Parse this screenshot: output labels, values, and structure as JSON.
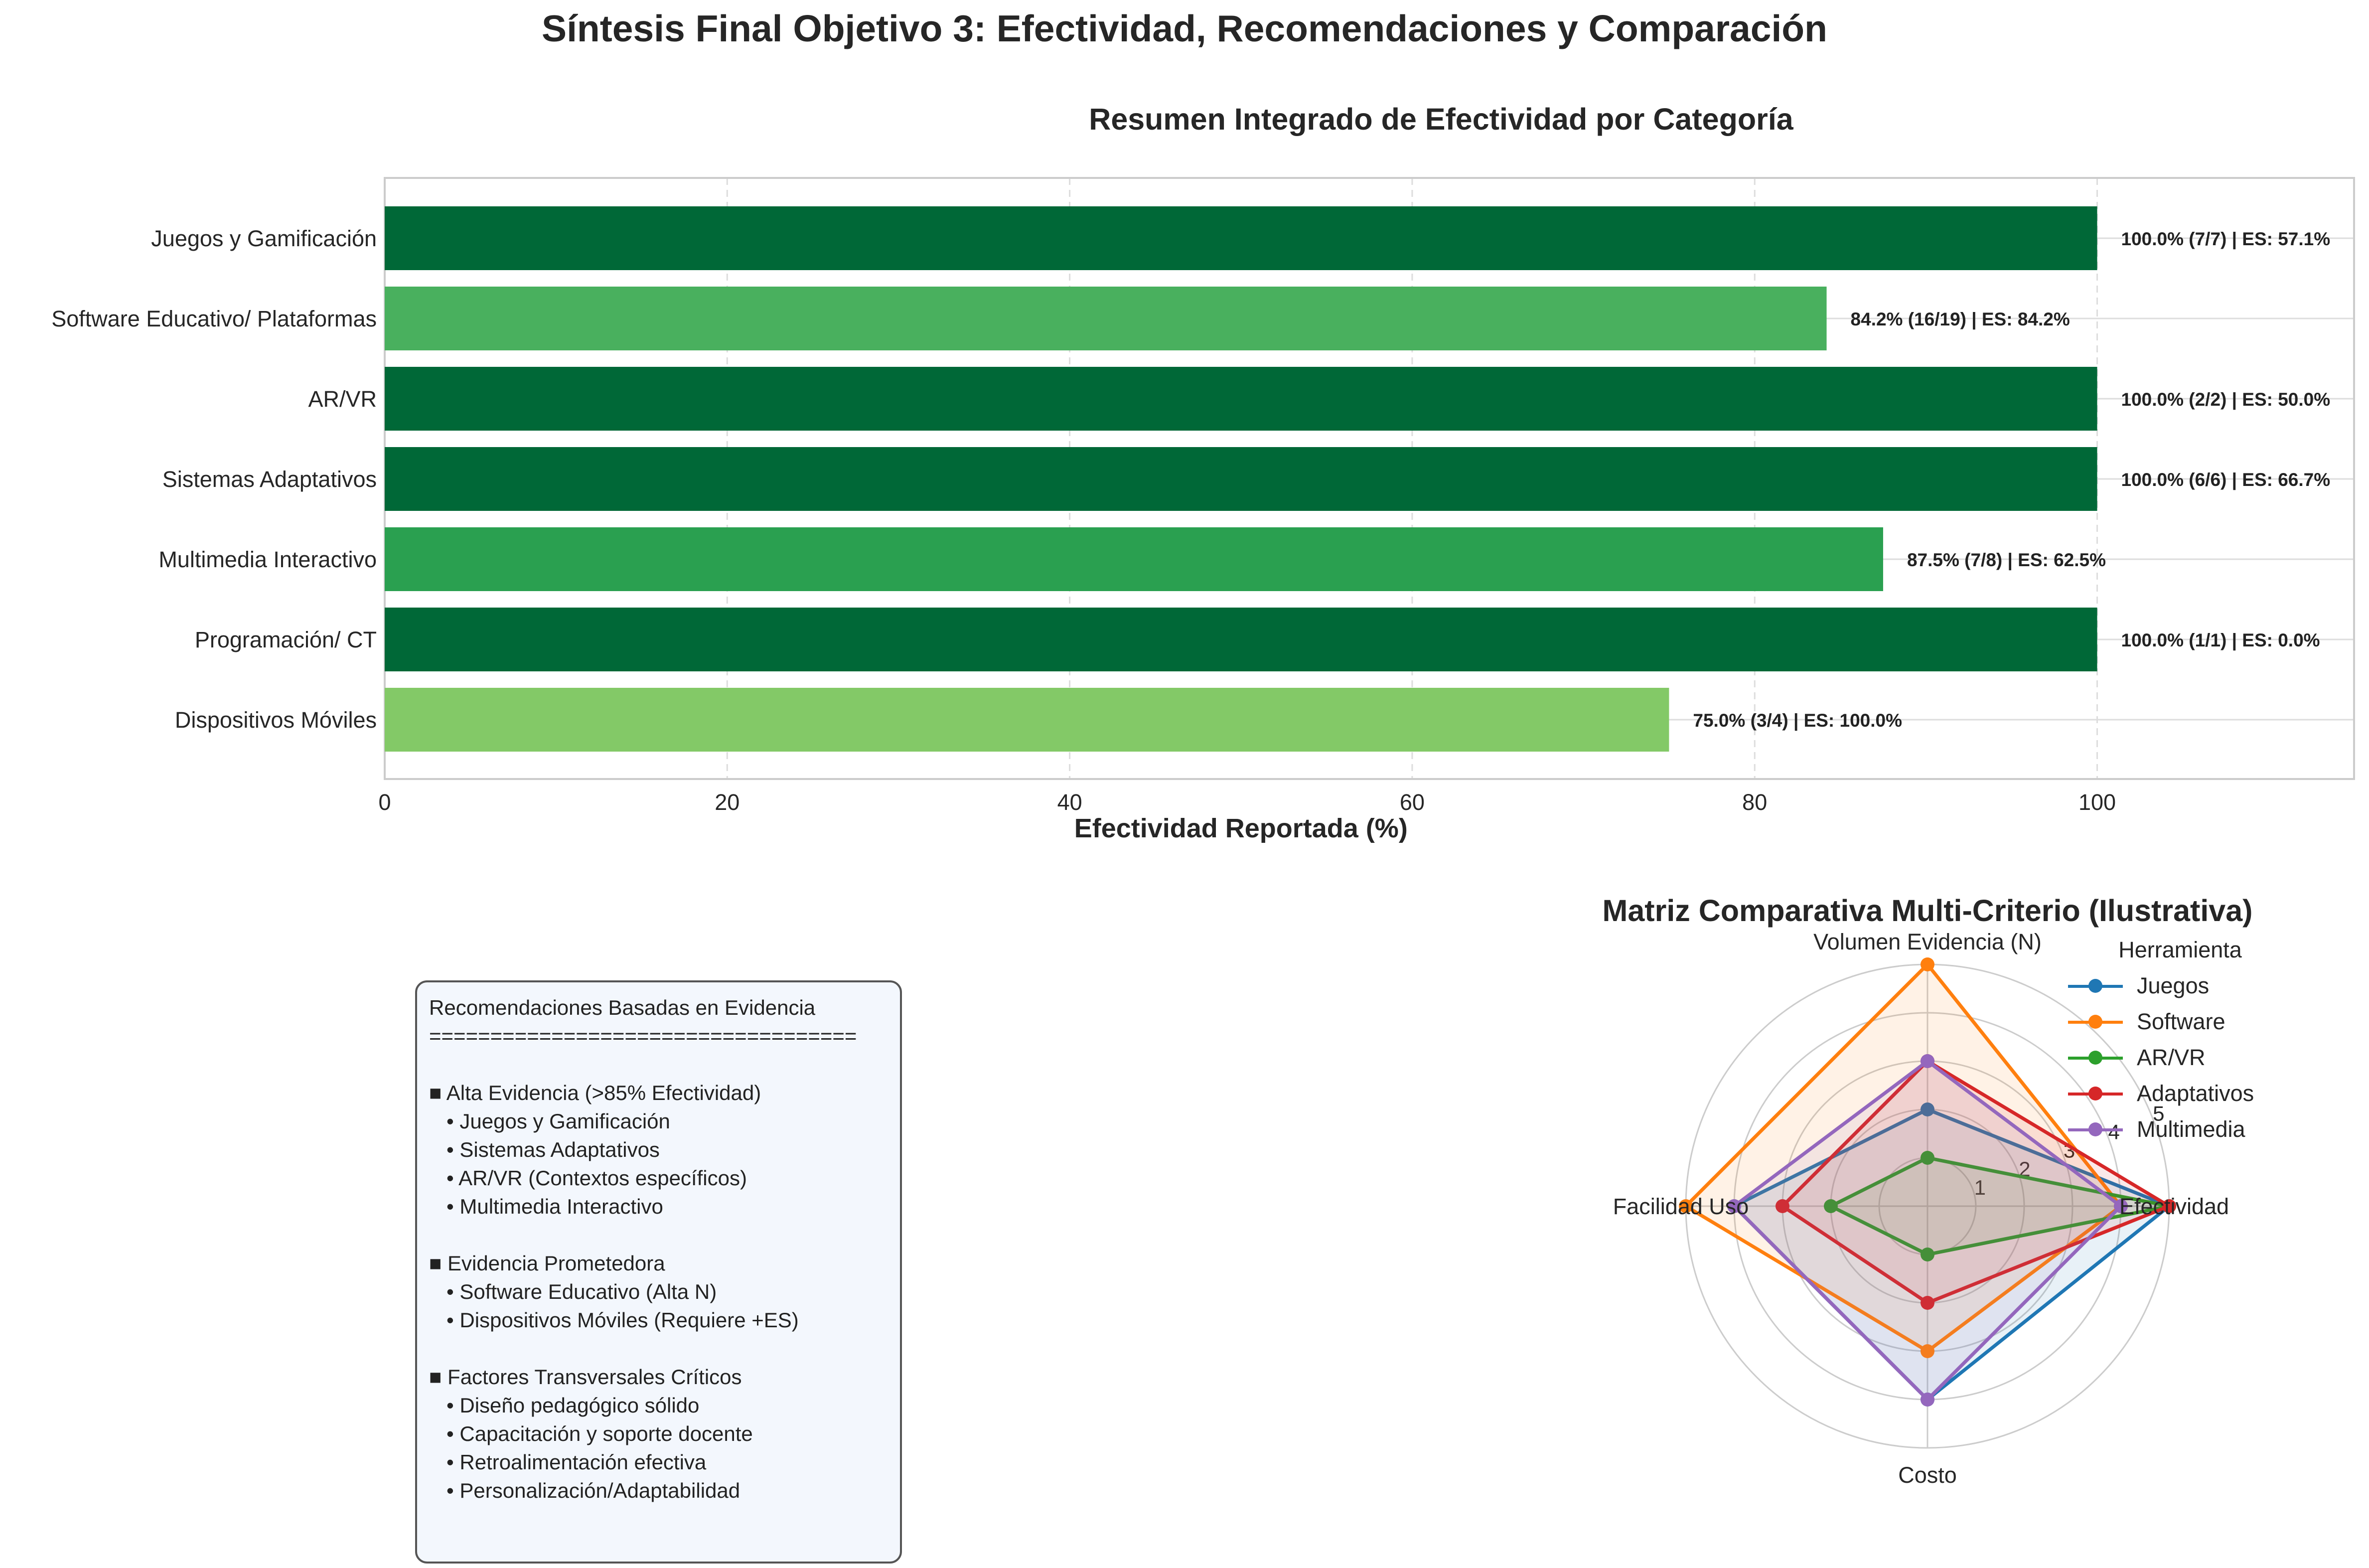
{
  "suptitle": "Síntesis Final Objetivo 3: Efectividad, Recomendaciones y Comparación",
  "chart_data": [
    {
      "type": "bar",
      "orientation": "horizontal",
      "title": "Resumen Integrado de Efectividad por Categoría",
      "xlabel": "Efectividad Reportada (%)",
      "ylabel": "",
      "xlim": [
        0,
        115
      ],
      "xticks": [
        0,
        20,
        40,
        60,
        80,
        100
      ],
      "grid": true,
      "categories": [
        "Juegos y Gamificación",
        "Software Educativo/ Plataformas",
        "AR/VR",
        "Sistemas Adaptativos",
        "Multimedia Interactivo",
        "Programación/ CT",
        "Dispositivos Móviles"
      ],
      "values": [
        100.0,
        84.2,
        100.0,
        100.0,
        87.5,
        100.0,
        75.0
      ],
      "bar_colors": [
        "#006837",
        "#49b05e",
        "#006837",
        "#006837",
        "#2aa050",
        "#006837",
        "#83c967"
      ],
      "data_labels": [
        "100.0% (7/7) | ES: 57.1%",
        "84.2% (16/19) | ES: 84.2%",
        "100.0% (2/2) | ES: 50.0%",
        "100.0% (6/6) | ES: 66.7%",
        "87.5% (7/8) | ES: 62.5%",
        "100.0% (1/1) | ES: 0.0%",
        "75.0% (3/4) | ES: 100.0%"
      ]
    },
    {
      "type": "radar",
      "title": "Matriz Comparativa Multi-Criterio (Ilustrativa)",
      "axes": [
        "Efectividad",
        "Volumen Evidencia (N)",
        "Facilidad Uso",
        "Costo"
      ],
      "rlim": [
        0,
        5
      ],
      "rticks": [
        1,
        2,
        3,
        4,
        5
      ],
      "legend_title": "Herramienta",
      "legend_position": "top-right",
      "series": [
        {
          "name": "Juegos",
          "color": "#1f77b4",
          "values": [
            5,
            2,
            4,
            4
          ]
        },
        {
          "name": "Software",
          "color": "#ff7f0e",
          "values": [
            4,
            5,
            5,
            3
          ]
        },
        {
          "name": "AR/VR",
          "color": "#2ca02c",
          "values": [
            5,
            1,
            2,
            1
          ]
        },
        {
          "name": "Adaptativos",
          "color": "#d62728",
          "values": [
            5,
            3,
            3,
            2
          ]
        },
        {
          "name": "Multimedia",
          "color": "#9467bd",
          "values": [
            4,
            3,
            4,
            4
          ]
        }
      ]
    }
  ],
  "recommendations": {
    "text": "Recomendaciones Basadas en Evidencia\n===================================\n\n■ Alta Evidencia (>85% Efectividad)\n   • Juegos y Gamificación\n   • Sistemas Adaptativos\n   • AR/VR (Contextos específicos)\n   • Multimedia Interactivo\n\n■ Evidencia Prometedora\n   • Software Educativo (Alta N)\n   • Dispositivos Móviles (Requiere +ES)\n\n■ Factores Transversales Críticos\n   • Diseño pedagógico sólido\n   • Capacitación y soporte docente\n   • Retroalimentación efectiva\n   • Personalización/Adaptabilidad"
  }
}
